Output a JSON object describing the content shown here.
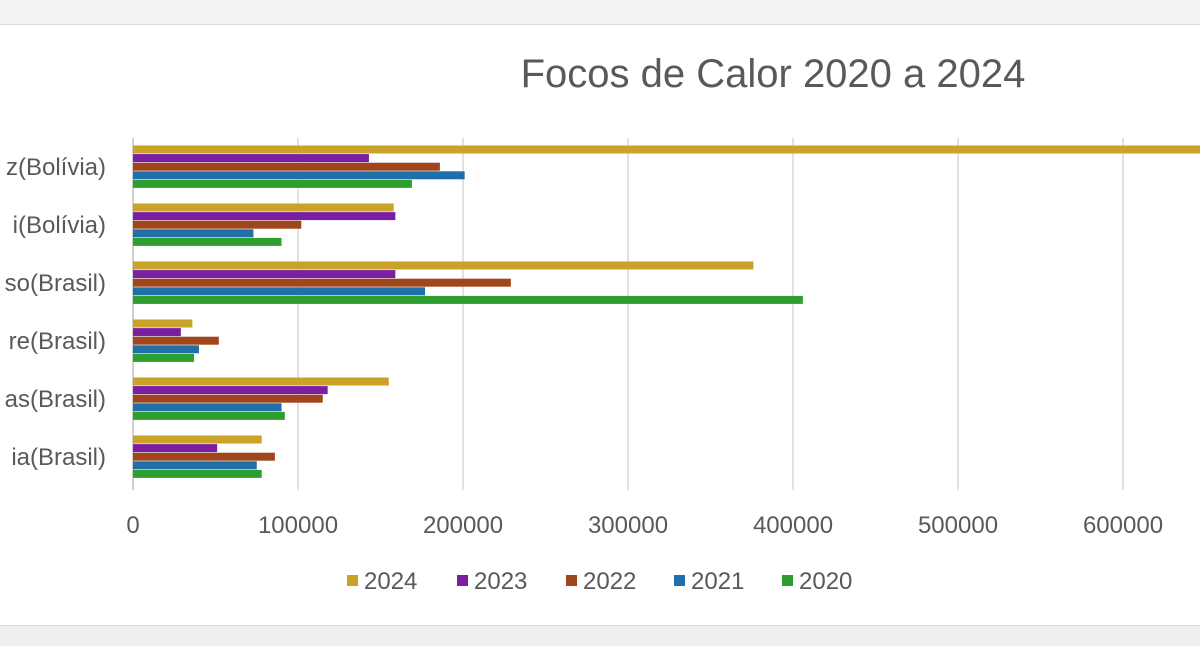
{
  "chart_data": {
    "type": "bar",
    "orientation": "horizontal",
    "title": "Focos de Calor 2020 a 2024",
    "xlabel": "",
    "ylabel": "",
    "xlim": [
      0,
      650000
    ],
    "x_ticks": [
      "0",
      "100000",
      "200000",
      "300000",
      "400000",
      "500000",
      "600000"
    ],
    "grid": true,
    "legend_position": "bottom",
    "categories": [
      "z(Bolívia)",
      "i(Bolívia)",
      "so(Brasil)",
      "re(Brasil)",
      "as(Brasil)",
      "ia(Brasil)"
    ],
    "series": [
      {
        "name": "2024",
        "color": "#c9a227",
        "values": [
          650000,
          158000,
          376000,
          36000,
          155000,
          78000
        ]
      },
      {
        "name": "2023",
        "color": "#7b1fa2",
        "values": [
          143000,
          159000,
          159000,
          29000,
          118000,
          51000
        ]
      },
      {
        "name": "2022",
        "color": "#a0461c",
        "values": [
          186000,
          102000,
          229000,
          52000,
          115000,
          86000
        ]
      },
      {
        "name": "2021",
        "color": "#1f6fa8",
        "values": [
          201000,
          73000,
          177000,
          40000,
          90000,
          75000
        ]
      },
      {
        "name": "2020",
        "color": "#2e9e2e",
        "values": [
          169000,
          90000,
          406000,
          37000,
          92000,
          78000
        ]
      }
    ]
  }
}
